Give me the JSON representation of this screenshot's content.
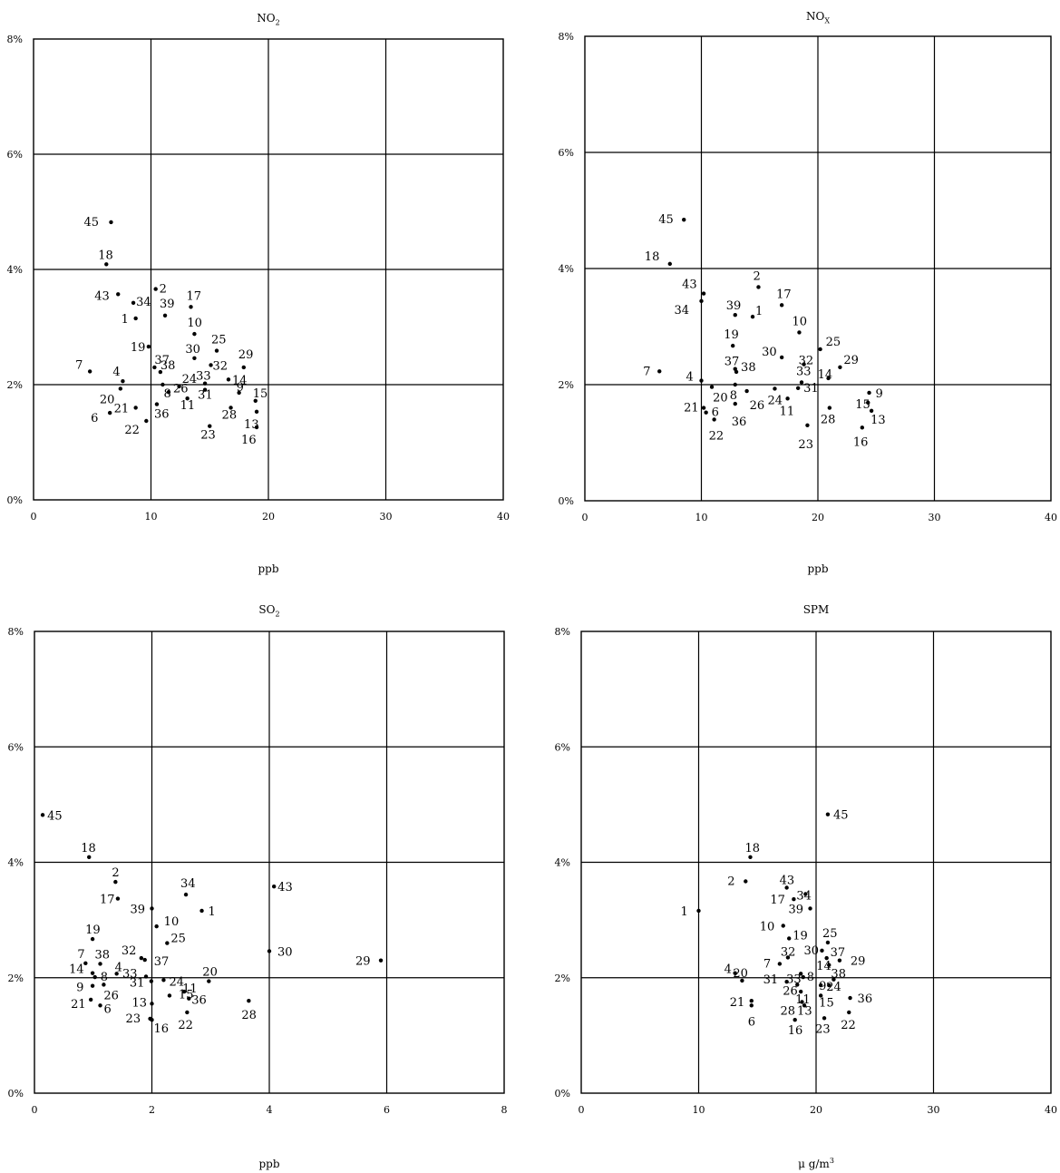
{
  "chart_data": [
    {
      "type": "scatter",
      "title_main": "NO",
      "title_sub": "2",
      "xunit_main": "ppb",
      "xunit_sup": "",
      "xlim": [
        0,
        40
      ],
      "ylim": [
        0,
        8
      ],
      "xticks": [
        "0",
        "10",
        "20",
        "30",
        "40"
      ],
      "yticks": [
        "0%",
        "2%",
        "4%",
        "6%",
        "8%"
      ],
      "grid": true,
      "points": [
        {
          "label": "45",
          "x": 6.6,
          "y": 4.82
        },
        {
          "label": "18",
          "x": 6.2,
          "y": 4.09
        },
        {
          "label": "43",
          "x": 7.2,
          "y": 3.57
        },
        {
          "label": "34",
          "x": 8.5,
          "y": 3.42
        },
        {
          "label": "2",
          "x": 10.4,
          "y": 3.66
        },
        {
          "label": "17",
          "x": 13.4,
          "y": 3.35
        },
        {
          "label": "1",
          "x": 8.7,
          "y": 3.15
        },
        {
          "label": "39",
          "x": 11.2,
          "y": 3.2
        },
        {
          "label": "10",
          "x": 13.7,
          "y": 2.88
        },
        {
          "label": "19",
          "x": 9.8,
          "y": 2.66
        },
        {
          "label": "25",
          "x": 15.6,
          "y": 2.59
        },
        {
          "label": "30",
          "x": 13.7,
          "y": 2.46
        },
        {
          "label": "37",
          "x": 10.3,
          "y": 2.3
        },
        {
          "label": "29",
          "x": 17.9,
          "y": 2.3
        },
        {
          "label": "32",
          "x": 15.1,
          "y": 2.34
        },
        {
          "label": "7",
          "x": 4.8,
          "y": 2.23
        },
        {
          "label": "38",
          "x": 10.8,
          "y": 2.22
        },
        {
          "label": "4",
          "x": 7.6,
          "y": 2.06
        },
        {
          "label": "24",
          "x": 12.4,
          "y": 1.97
        },
        {
          "label": "33",
          "x": 14.6,
          "y": 2.02
        },
        {
          "label": "14",
          "x": 16.6,
          "y": 2.09
        },
        {
          "label": "20",
          "x": 7.4,
          "y": 1.93
        },
        {
          "label": "8",
          "x": 11.0,
          "y": 2.0
        },
        {
          "label": "21",
          "x": 8.7,
          "y": 1.6
        },
        {
          "label": "6",
          "x": 6.5,
          "y": 1.51
        },
        {
          "label": "26",
          "x": 11.5,
          "y": 1.87
        },
        {
          "label": "11",
          "x": 13.1,
          "y": 1.76
        },
        {
          "label": "31",
          "x": 14.6,
          "y": 1.91
        },
        {
          "label": "9",
          "x": 17.5,
          "y": 1.86
        },
        {
          "label": "15",
          "x": 18.9,
          "y": 1.72
        },
        {
          "label": "36",
          "x": 10.5,
          "y": 1.66
        },
        {
          "label": "28",
          "x": 16.8,
          "y": 1.6
        },
        {
          "label": "13",
          "x": 19.0,
          "y": 1.53
        },
        {
          "label": "22",
          "x": 9.6,
          "y": 1.37
        },
        {
          "label": "23",
          "x": 15.0,
          "y": 1.28
        },
        {
          "label": "16",
          "x": 19.0,
          "y": 1.26
        }
      ]
    },
    {
      "type": "scatter",
      "title_main": "NO",
      "title_sub": "X",
      "xunit_main": "ppb",
      "xunit_sup": "",
      "xlim": [
        0,
        40
      ],
      "ylim": [
        0,
        8
      ],
      "xticks": [
        "0",
        "10",
        "20",
        "30",
        "40"
      ],
      "yticks": [
        "0%",
        "2%",
        "4%",
        "6%",
        "8%"
      ],
      "grid": true,
      "points": [
        {
          "label": "45",
          "x": 8.5,
          "y": 4.84
        },
        {
          "label": "18",
          "x": 7.3,
          "y": 4.08
        },
        {
          "label": "2",
          "x": 14.9,
          "y": 3.68
        },
        {
          "label": "43",
          "x": 10.2,
          "y": 3.57
        },
        {
          "label": "34",
          "x": 10.0,
          "y": 3.44
        },
        {
          "label": "17",
          "x": 16.9,
          "y": 3.37
        },
        {
          "label": "39",
          "x": 12.9,
          "y": 3.2
        },
        {
          "label": "1",
          "x": 14.4,
          "y": 3.17
        },
        {
          "label": "10",
          "x": 18.4,
          "y": 2.9
        },
        {
          "label": "19",
          "x": 12.7,
          "y": 2.67
        },
        {
          "label": "25",
          "x": 20.2,
          "y": 2.61
        },
        {
          "label": "30",
          "x": 16.9,
          "y": 2.47
        },
        {
          "label": "32",
          "x": 18.8,
          "y": 2.35
        },
        {
          "label": "29",
          "x": 21.9,
          "y": 2.3
        },
        {
          "label": "37",
          "x": 12.9,
          "y": 2.27
        },
        {
          "label": "7",
          "x": 6.4,
          "y": 2.23
        },
        {
          "label": "38",
          "x": 13.0,
          "y": 2.22
        },
        {
          "label": "14",
          "x": 20.9,
          "y": 2.11
        },
        {
          "label": "33",
          "x": 18.6,
          "y": 2.04
        },
        {
          "label": "4",
          "x": 10.0,
          "y": 2.07
        },
        {
          "label": "20",
          "x": 10.9,
          "y": 1.96
        },
        {
          "label": "8",
          "x": 12.9,
          "y": 2.0
        },
        {
          "label": "26",
          "x": 13.9,
          "y": 1.89
        },
        {
          "label": "24",
          "x": 16.3,
          "y": 1.93
        },
        {
          "label": "31",
          "x": 18.3,
          "y": 1.94
        },
        {
          "label": "11",
          "x": 17.4,
          "y": 1.76
        },
        {
          "label": "28",
          "x": 21.0,
          "y": 1.6
        },
        {
          "label": "9",
          "x": 24.4,
          "y": 1.86
        },
        {
          "label": "15",
          "x": 24.3,
          "y": 1.69
        },
        {
          "label": "13",
          "x": 24.6,
          "y": 1.55
        },
        {
          "label": "21",
          "x": 10.2,
          "y": 1.6
        },
        {
          "label": "6",
          "x": 10.4,
          "y": 1.52
        },
        {
          "label": "22",
          "x": 11.1,
          "y": 1.4
        },
        {
          "label": "36",
          "x": 12.9,
          "y": 1.67
        },
        {
          "label": "23",
          "x": 19.1,
          "y": 1.3
        },
        {
          "label": "16",
          "x": 23.8,
          "y": 1.26
        }
      ]
    },
    {
      "type": "scatter",
      "title_main": "SO",
      "title_sub": "2",
      "xunit_main": "ppb",
      "xunit_sup": "",
      "xlim": [
        0,
        8
      ],
      "ylim": [
        0,
        8
      ],
      "xticks": [
        "0",
        "2",
        "4",
        "6",
        "8"
      ],
      "yticks": [
        "0%",
        "2%",
        "4%",
        "6%",
        "8%"
      ],
      "grid": true,
      "points": [
        {
          "label": "45",
          "x": 0.14,
          "y": 4.82
        },
        {
          "label": "18",
          "x": 0.93,
          "y": 4.09
        },
        {
          "label": "2",
          "x": 1.38,
          "y": 3.66
        },
        {
          "label": "34",
          "x": 2.58,
          "y": 3.44
        },
        {
          "label": "43",
          "x": 4.08,
          "y": 3.58
        },
        {
          "label": "17",
          "x": 1.42,
          "y": 3.37
        },
        {
          "label": "39",
          "x": 2.0,
          "y": 3.2
        },
        {
          "label": "1",
          "x": 2.85,
          "y": 3.16
        },
        {
          "label": "10",
          "x": 2.08,
          "y": 2.89
        },
        {
          "label": "19",
          "x": 0.99,
          "y": 2.67
        },
        {
          "label": "25",
          "x": 2.26,
          "y": 2.6
        },
        {
          "label": "30",
          "x": 4.0,
          "y": 2.46
        },
        {
          "label": "29",
          "x": 5.9,
          "y": 2.3
        },
        {
          "label": "32",
          "x": 1.82,
          "y": 2.34
        },
        {
          "label": "37",
          "x": 1.88,
          "y": 2.31
        },
        {
          "label": "7",
          "x": 0.87,
          "y": 2.25
        },
        {
          "label": "38",
          "x": 1.12,
          "y": 2.24
        },
        {
          "label": "14",
          "x": 0.99,
          "y": 2.08
        },
        {
          "label": "8",
          "x": 1.03,
          "y": 2.01
        },
        {
          "label": "4",
          "x": 1.4,
          "y": 2.07
        },
        {
          "label": "33",
          "x": 1.9,
          "y": 2.02
        },
        {
          "label": "20",
          "x": 2.97,
          "y": 1.94
        },
        {
          "label": "9",
          "x": 0.99,
          "y": 1.86
        },
        {
          "label": "26",
          "x": 1.18,
          "y": 1.88
        },
        {
          "label": "31",
          "x": 1.99,
          "y": 1.94
        },
        {
          "label": "24",
          "x": 2.2,
          "y": 1.96
        },
        {
          "label": "11",
          "x": 2.55,
          "y": 1.76
        },
        {
          "label": "21",
          "x": 0.96,
          "y": 1.62
        },
        {
          "label": "6",
          "x": 1.12,
          "y": 1.52
        },
        {
          "label": "13",
          "x": 2.0,
          "y": 1.55
        },
        {
          "label": "15",
          "x": 2.3,
          "y": 1.69
        },
        {
          "label": "36",
          "x": 2.63,
          "y": 1.64
        },
        {
          "label": "28",
          "x": 3.65,
          "y": 1.6
        },
        {
          "label": "22",
          "x": 2.6,
          "y": 1.4
        },
        {
          "label": "23",
          "x": 1.97,
          "y": 1.29
        },
        {
          "label": "16",
          "x": 2.0,
          "y": 1.27
        }
      ]
    },
    {
      "type": "scatter",
      "title_main": "SPM",
      "title_sub": "",
      "xunit_main": "μ g/m",
      "xunit_sup": "3",
      "xlim": [
        0,
        40
      ],
      "ylim": [
        0,
        8
      ],
      "xticks": [
        "0",
        "10",
        "20",
        "30",
        "40"
      ],
      "yticks": [
        "0%",
        "2%",
        "4%",
        "6%",
        "8%"
      ],
      "grid": true,
      "points": [
        {
          "label": "45",
          "x": 21.0,
          "y": 4.83
        },
        {
          "label": "18",
          "x": 14.4,
          "y": 4.09
        },
        {
          "label": "2",
          "x": 14.0,
          "y": 3.67
        },
        {
          "label": "43",
          "x": 17.5,
          "y": 3.56
        },
        {
          "label": "34",
          "x": 19.1,
          "y": 3.45
        },
        {
          "label": "17",
          "x": 18.1,
          "y": 3.36
        },
        {
          "label": "39",
          "x": 19.5,
          "y": 3.2
        },
        {
          "label": "1",
          "x": 10.0,
          "y": 3.16
        },
        {
          "label": "10",
          "x": 17.2,
          "y": 2.9
        },
        {
          "label": "19",
          "x": 17.7,
          "y": 2.68
        },
        {
          "label": "25",
          "x": 21.0,
          "y": 2.61
        },
        {
          "label": "30",
          "x": 20.5,
          "y": 2.47
        },
        {
          "label": "32",
          "x": 17.6,
          "y": 2.35
        },
        {
          "label": "37",
          "x": 20.9,
          "y": 2.34
        },
        {
          "label": "29",
          "x": 22.0,
          "y": 2.3
        },
        {
          "label": "7",
          "x": 16.9,
          "y": 2.24
        },
        {
          "label": "14",
          "x": 21.1,
          "y": 2.22
        },
        {
          "label": "38",
          "x": 21.5,
          "y": 1.97
        },
        {
          "label": "4",
          "x": 13.1,
          "y": 2.08
        },
        {
          "label": "33",
          "x": 18.7,
          "y": 2.07
        },
        {
          "label": "8",
          "x": 18.9,
          "y": 2.01
        },
        {
          "label": "9",
          "x": 20.4,
          "y": 1.87
        },
        {
          "label": "24",
          "x": 21.1,
          "y": 1.87
        },
        {
          "label": "31",
          "x": 17.5,
          "y": 1.93
        },
        {
          "label": "26",
          "x": 18.4,
          "y": 1.88
        },
        {
          "label": "11",
          "x": 18.7,
          "y": 1.76
        },
        {
          "label": "20",
          "x": 13.7,
          "y": 1.95
        },
        {
          "label": "36",
          "x": 22.9,
          "y": 1.65
        },
        {
          "label": "15",
          "x": 20.4,
          "y": 1.69
        },
        {
          "label": "21",
          "x": 14.5,
          "y": 1.6
        },
        {
          "label": "6",
          "x": 14.5,
          "y": 1.52
        },
        {
          "label": "28",
          "x": 18.8,
          "y": 1.58
        },
        {
          "label": "13",
          "x": 19.0,
          "y": 1.52
        },
        {
          "label": "22",
          "x": 22.8,
          "y": 1.4
        },
        {
          "label": "23",
          "x": 20.7,
          "y": 1.3
        },
        {
          "label": "16",
          "x": 18.2,
          "y": 1.27
        }
      ]
    }
  ]
}
